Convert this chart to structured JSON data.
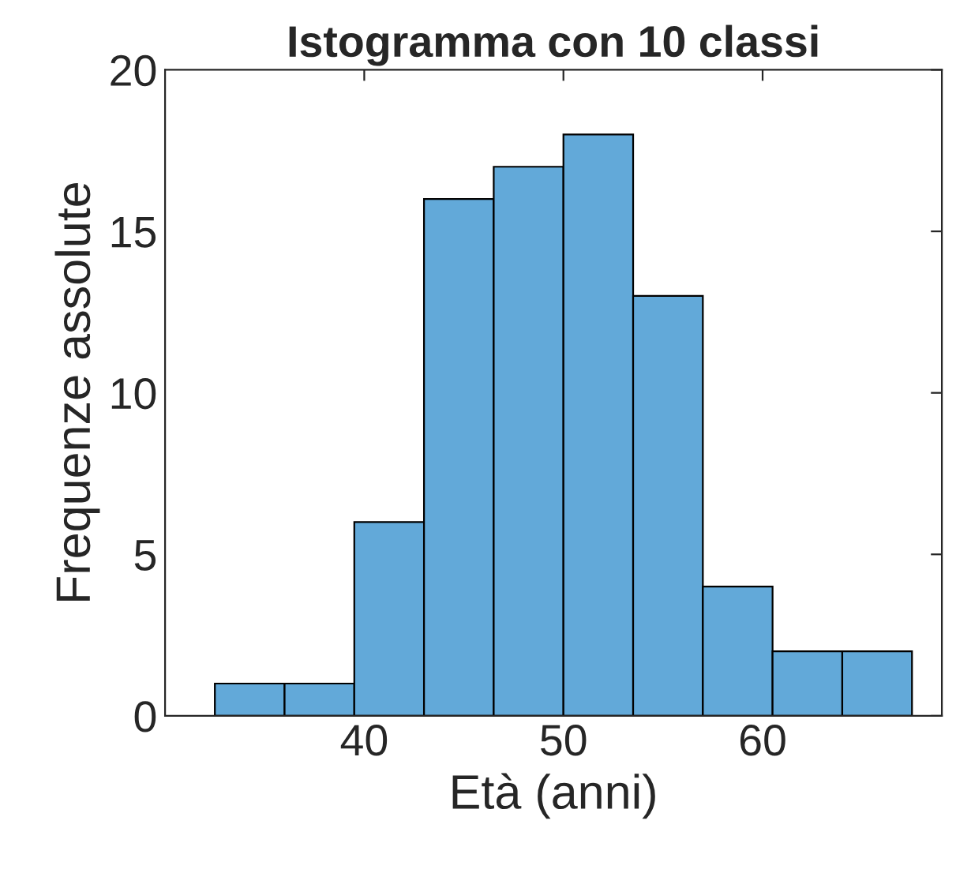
{
  "chart_data": {
    "type": "histogram",
    "title": "Istogramma con 10 classi",
    "xlabel": "Età (anni)",
    "ylabel": "Frequenze assolute",
    "bins": [
      32.5,
      36.0,
      39.5,
      43.0,
      46.5,
      50.0,
      53.5,
      57.0,
      60.5,
      64.0,
      67.5
    ],
    "values": [
      1,
      1,
      6,
      16,
      17,
      18,
      13,
      4,
      2,
      2
    ],
    "color": "#62a9d9",
    "xlim": [
      30,
      69
    ],
    "xticks": [
      40,
      50,
      60
    ],
    "ylim": [
      0,
      20
    ],
    "yticks": [
      0,
      5,
      10,
      15,
      20
    ],
    "grid": false
  }
}
